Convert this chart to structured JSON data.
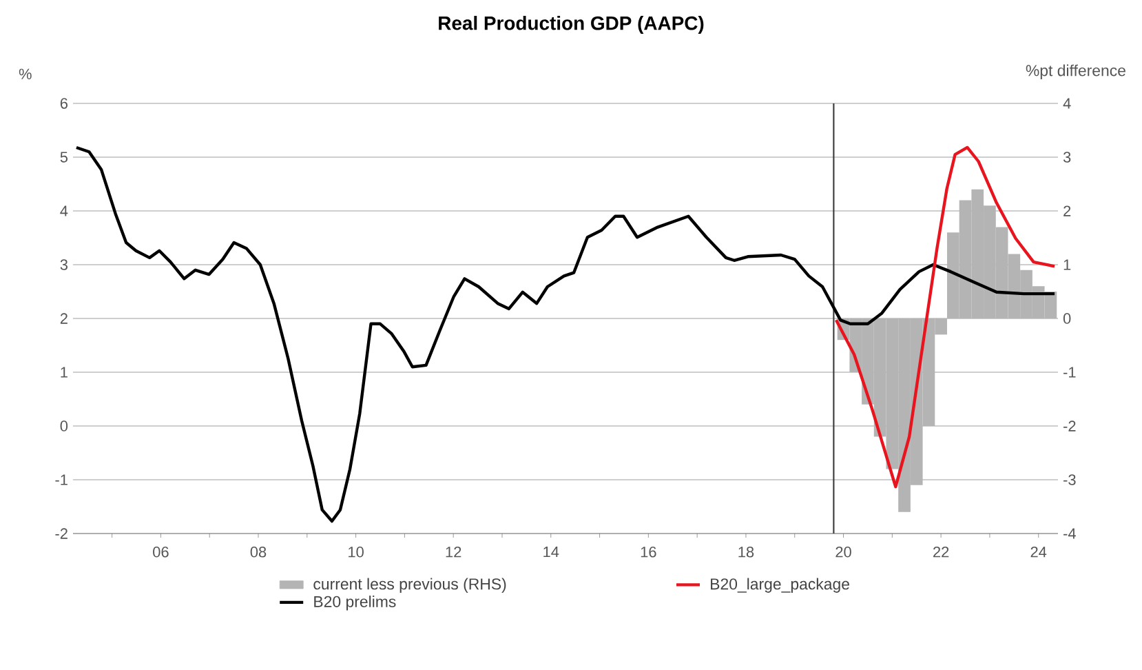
{
  "chart_data": {
    "type": "line",
    "title": "Real Production GDP (AAPC)",
    "ylabel": "%",
    "y2label": "%pt difference",
    "xlim": [
      4.2,
      24.4
    ],
    "xticks": [
      {
        "value": 5,
        "label": null
      },
      {
        "value": 6,
        "label": "06"
      },
      {
        "value": 7,
        "label": null
      },
      {
        "value": 8,
        "label": "08"
      },
      {
        "value": 9,
        "label": null
      },
      {
        "value": 10,
        "label": "10"
      },
      {
        "value": 11,
        "label": null
      },
      {
        "value": 12,
        "label": "12"
      },
      {
        "value": 13,
        "label": null
      },
      {
        "value": 14,
        "label": "14"
      },
      {
        "value": 15,
        "label": null
      },
      {
        "value": 16,
        "label": "16"
      },
      {
        "value": 17,
        "label": null
      },
      {
        "value": 18,
        "label": "18"
      },
      {
        "value": 19,
        "label": null
      },
      {
        "value": 20,
        "label": "20"
      },
      {
        "value": 21,
        "label": null
      },
      {
        "value": 22,
        "label": "22"
      },
      {
        "value": 23,
        "label": null
      },
      {
        "value": 24,
        "label": "24"
      }
    ],
    "ylim": [
      -2,
      6
    ],
    "yticks": [
      -2,
      -1,
      0,
      1,
      2,
      3,
      4,
      5,
      6
    ],
    "y2lim": [
      -4,
      4
    ],
    "y2ticks": [
      -4,
      -3,
      -2,
      -1,
      0,
      1,
      2,
      3,
      4
    ],
    "grid": "y",
    "legend": "bottom",
    "ref_lines": [
      {
        "axis": "x",
        "value": 19.8,
        "color": "#404040"
      }
    ],
    "series": [
      {
        "name": "current less previous (RHS)",
        "type": "bar",
        "axis": "y2",
        "color": "#b4b4b4",
        "x": [
          20.0,
          20.25,
          20.5,
          20.75,
          21.0,
          21.25,
          21.5,
          21.75,
          22.0,
          22.25,
          22.5,
          22.75,
          23.0,
          23.25,
          23.5,
          23.75,
          24.0,
          24.25
        ],
        "values": [
          -0.4,
          -1.0,
          -1.6,
          -2.2,
          -2.8,
          -3.6,
          -3.1,
          -2.0,
          -0.3,
          1.6,
          2.2,
          2.4,
          2.1,
          1.7,
          1.2,
          0.9,
          0.6,
          0.5
        ]
      },
      {
        "name": "B20_large_package",
        "axis": "y2",
        "color": "#e8141e",
        "x": [
          19.85,
          20.22,
          20.59,
          21.07,
          21.35,
          21.64,
          21.92,
          22.12,
          22.29,
          22.54,
          22.77,
          23.14,
          23.53,
          23.9,
          24.33
        ],
        "values": [
          -0.03,
          -0.67,
          -1.69,
          -3.13,
          -2.2,
          -0.41,
          1.31,
          2.41,
          3.05,
          3.18,
          2.92,
          2.15,
          1.49,
          1.05,
          0.97
        ]
      },
      {
        "name": "B20 prelims",
        "axis": "y",
        "color": "#000000",
        "x": [
          4.27,
          4.53,
          4.78,
          5.07,
          5.29,
          5.49,
          5.77,
          5.97,
          6.2,
          6.48,
          6.71,
          6.99,
          7.27,
          7.5,
          7.76,
          8.04,
          8.32,
          8.61,
          8.89,
          9.12,
          9.31,
          9.51,
          9.68,
          9.88,
          10.08,
          10.31,
          10.5,
          10.73,
          10.99,
          11.16,
          11.44,
          11.72,
          12.01,
          12.23,
          12.52,
          12.91,
          13.14,
          13.42,
          13.71,
          13.93,
          14.27,
          14.47,
          14.75,
          15.04,
          15.32,
          15.49,
          15.77,
          16.17,
          16.82,
          17.19,
          17.59,
          17.76,
          18.04,
          18.72,
          19.0,
          19.29,
          19.57,
          19.94,
          20.14,
          20.5,
          20.79,
          21.16,
          21.55,
          21.84,
          22.2,
          22.69,
          23.14,
          23.7,
          24.33
        ],
        "values": [
          5.18,
          5.1,
          4.77,
          3.95,
          3.41,
          3.26,
          3.13,
          3.26,
          3.05,
          2.74,
          2.9,
          2.82,
          3.1,
          3.41,
          3.3,
          3.0,
          2.28,
          1.26,
          0.1,
          -0.74,
          -1.56,
          -1.77,
          -1.56,
          -0.8,
          0.23,
          1.9,
          1.9,
          1.72,
          1.38,
          1.1,
          1.13,
          1.77,
          2.41,
          2.74,
          2.59,
          2.28,
          2.18,
          2.49,
          2.28,
          2.59,
          2.79,
          2.85,
          3.51,
          3.64,
          3.9,
          3.9,
          3.51,
          3.69,
          3.9,
          3.51,
          3.13,
          3.08,
          3.15,
          3.18,
          3.1,
          2.79,
          2.59,
          1.97,
          1.9,
          1.9,
          2.1,
          2.54,
          2.87,
          3.0,
          2.87,
          2.67,
          2.49,
          2.46,
          2.46
        ]
      }
    ]
  }
}
